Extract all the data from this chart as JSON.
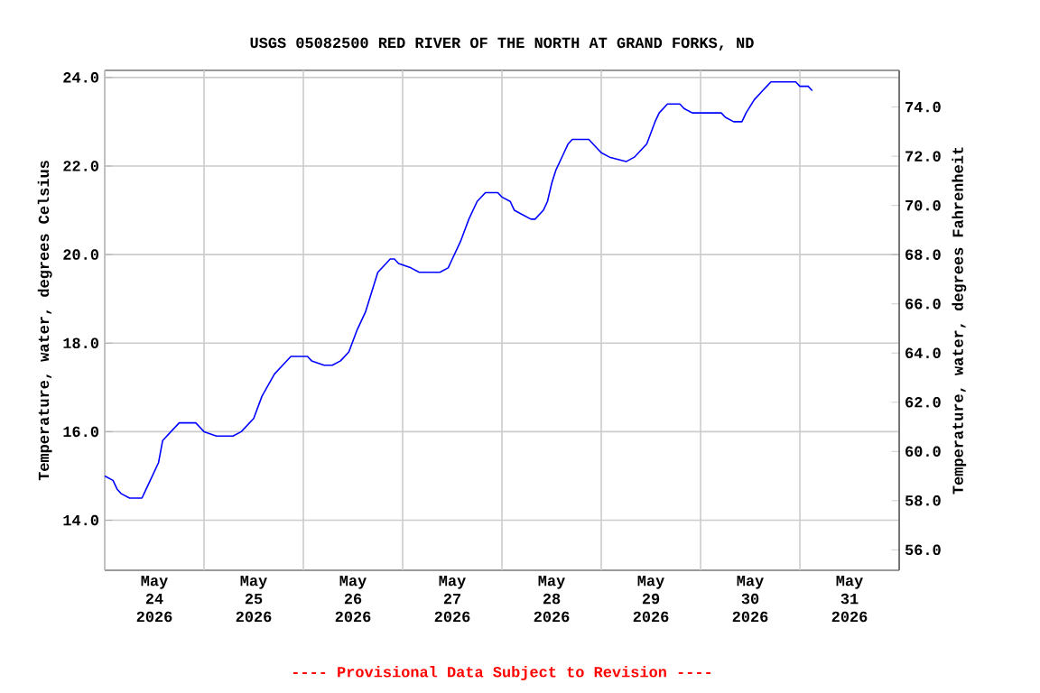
{
  "chart_data": {
    "type": "line",
    "title": "USGS 05082500 RED RIVER OF THE NORTH AT GRAND FORKS, ND",
    "ylabel": "Temperature, water, degrees Celsius",
    "y2label": "Temperature, water, degrees Fahrenheit",
    "annotations": [
      "---- Provisional Data Subject to Revision ----"
    ],
    "xlim": [
      "2026-05-24T00:00",
      "2026-06-01T00:00"
    ],
    "xticks": [
      {
        "value": "2026-05-24T00:00",
        "label": null
      },
      {
        "value": "2026-05-24T12:00",
        "label": "May 24 2026"
      },
      {
        "value": "2026-05-25T00:00",
        "label": null
      },
      {
        "value": "2026-05-25T12:00",
        "label": "May 25 2026"
      },
      {
        "value": "2026-05-26T00:00",
        "label": null
      },
      {
        "value": "2026-05-26T12:00",
        "label": "May 26 2026"
      },
      {
        "value": "2026-05-27T00:00",
        "label": null
      },
      {
        "value": "2026-05-27T12:00",
        "label": "May 27 2026"
      },
      {
        "value": "2026-05-28T00:00",
        "label": null
      },
      {
        "value": "2026-05-28T12:00",
        "label": "May 28 2026"
      },
      {
        "value": "2026-05-29T00:00",
        "label": null
      },
      {
        "value": "2026-05-29T12:00",
        "label": "May 29 2026"
      },
      {
        "value": "2026-05-30T00:00",
        "label": null
      },
      {
        "value": "2026-05-30T12:00",
        "label": "May 30 2026"
      },
      {
        "value": "2026-05-31T00:00",
        "label": null
      },
      {
        "value": "2026-05-31T12:00",
        "label": "May 31 2026"
      },
      {
        "value": "2026-06-01T00:00",
        "label": null
      }
    ],
    "ylim": [
      12.87,
      24.16
    ],
    "yticks": [
      {
        "value": 14,
        "label": "14.0"
      },
      {
        "value": 16,
        "label": "16.0"
      },
      {
        "value": 18,
        "label": "18.0"
      },
      {
        "value": 20,
        "label": "20.0"
      },
      {
        "value": 22,
        "label": "22.0"
      },
      {
        "value": 24,
        "label": "24.0"
      }
    ],
    "y2lim": [
      55.17,
      75.49
    ],
    "y2ticks": [
      {
        "value": 56,
        "label": "56.0"
      },
      {
        "value": 58,
        "label": "58.0"
      },
      {
        "value": 60,
        "label": "60.0"
      },
      {
        "value": 62,
        "label": "62.0"
      },
      {
        "value": 64,
        "label": "64.0"
      },
      {
        "value": 66,
        "label": "66.0"
      },
      {
        "value": 68,
        "label": "68.0"
      },
      {
        "value": 70,
        "label": "70.0"
      },
      {
        "value": 72,
        "label": "72.0"
      },
      {
        "value": 74,
        "label": "74.0"
      }
    ],
    "grid": true,
    "x": [
      "2026-05-24T00:00",
      "2026-05-24T02:00",
      "2026-05-24T03:00",
      "2026-05-24T04:00",
      "2026-05-24T06:00",
      "2026-05-24T09:00",
      "2026-05-24T10:00",
      "2026-05-24T11:00",
      "2026-05-24T13:00",
      "2026-05-24T14:00",
      "2026-05-24T16:00",
      "2026-05-24T18:00",
      "2026-05-24T22:00",
      "2026-05-24T23:00",
      "2026-05-25T00:00",
      "2026-05-25T03:00",
      "2026-05-25T07:00",
      "2026-05-25T09:00",
      "2026-05-25T12:00",
      "2026-05-25T14:00",
      "2026-05-25T17:00",
      "2026-05-25T19:00",
      "2026-05-25T21:00",
      "2026-05-26T01:00",
      "2026-05-26T02:00",
      "2026-05-26T05:00",
      "2026-05-26T07:00",
      "2026-05-26T09:00",
      "2026-05-26T11:00",
      "2026-05-26T13:00",
      "2026-05-26T15:00",
      "2026-05-26T17:00",
      "2026-05-26T18:00",
      "2026-05-26T20:00",
      "2026-05-26T21:00",
      "2026-05-26T22:00",
      "2026-05-26T23:00",
      "2026-05-27T02:00",
      "2026-05-27T04:00",
      "2026-05-27T09:00",
      "2026-05-27T11:00",
      "2026-05-27T12:00",
      "2026-05-27T14:00",
      "2026-05-27T16:00",
      "2026-05-27T18:00",
      "2026-05-27T19:00",
      "2026-05-27T20:00",
      "2026-05-27T23:00",
      "2026-05-28T00:00",
      "2026-05-28T02:00",
      "2026-05-28T03:00",
      "2026-05-28T05:00",
      "2026-05-28T07:00",
      "2026-05-28T08:00",
      "2026-05-28T10:00",
      "2026-05-28T11:00",
      "2026-05-28T12:00",
      "2026-05-28T13:00",
      "2026-05-28T15:00",
      "2026-05-28T16:00",
      "2026-05-28T17:00",
      "2026-05-28T21:00",
      "2026-05-28T22:00",
      "2026-05-29T00:00",
      "2026-05-29T02:00",
      "2026-05-29T06:00",
      "2026-05-29T08:00",
      "2026-05-29T09:00",
      "2026-05-29T11:00",
      "2026-05-29T13:00",
      "2026-05-29T14:00",
      "2026-05-29T16:00",
      "2026-05-29T19:00",
      "2026-05-29T20:00",
      "2026-05-29T22:00",
      "2026-05-30T05:00",
      "2026-05-30T06:00",
      "2026-05-30T08:00",
      "2026-05-30T10:00",
      "2026-05-30T11:00",
      "2026-05-30T13:00",
      "2026-05-30T15:00",
      "2026-05-30T16:00",
      "2026-05-30T17:00",
      "2026-05-30T23:00",
      "2026-05-31T00:00",
      "2026-05-31T02:00",
      "2026-05-31T03:00"
    ],
    "series": [
      {
        "color": "#0000ff",
        "values": [
          15.0,
          14.9,
          14.7,
          14.6,
          14.5,
          14.5,
          14.7,
          14.9,
          15.3,
          15.8,
          16.0,
          16.2,
          16.2,
          16.1,
          16.0,
          15.9,
          15.9,
          16.0,
          16.3,
          16.8,
          17.3,
          17.5,
          17.7,
          17.7,
          17.6,
          17.5,
          17.5,
          17.6,
          17.8,
          18.3,
          18.7,
          19.3,
          19.6,
          19.8,
          19.9,
          19.9,
          19.8,
          19.7,
          19.6,
          19.6,
          19.7,
          19.9,
          20.3,
          20.8,
          21.2,
          21.3,
          21.4,
          21.4,
          21.3,
          21.2,
          21.0,
          20.9,
          20.8,
          20.8,
          21.0,
          21.2,
          21.6,
          21.9,
          22.3,
          22.5,
          22.6,
          22.6,
          22.5,
          22.3,
          22.2,
          22.1,
          22.2,
          22.3,
          22.5,
          23.0,
          23.2,
          23.4,
          23.4,
          23.3,
          23.2,
          23.2,
          23.1,
          23.0,
          23.0,
          23.2,
          23.5,
          23.7,
          23.8,
          23.9,
          23.9,
          23.8,
          23.8,
          23.7
        ]
      }
    ]
  }
}
